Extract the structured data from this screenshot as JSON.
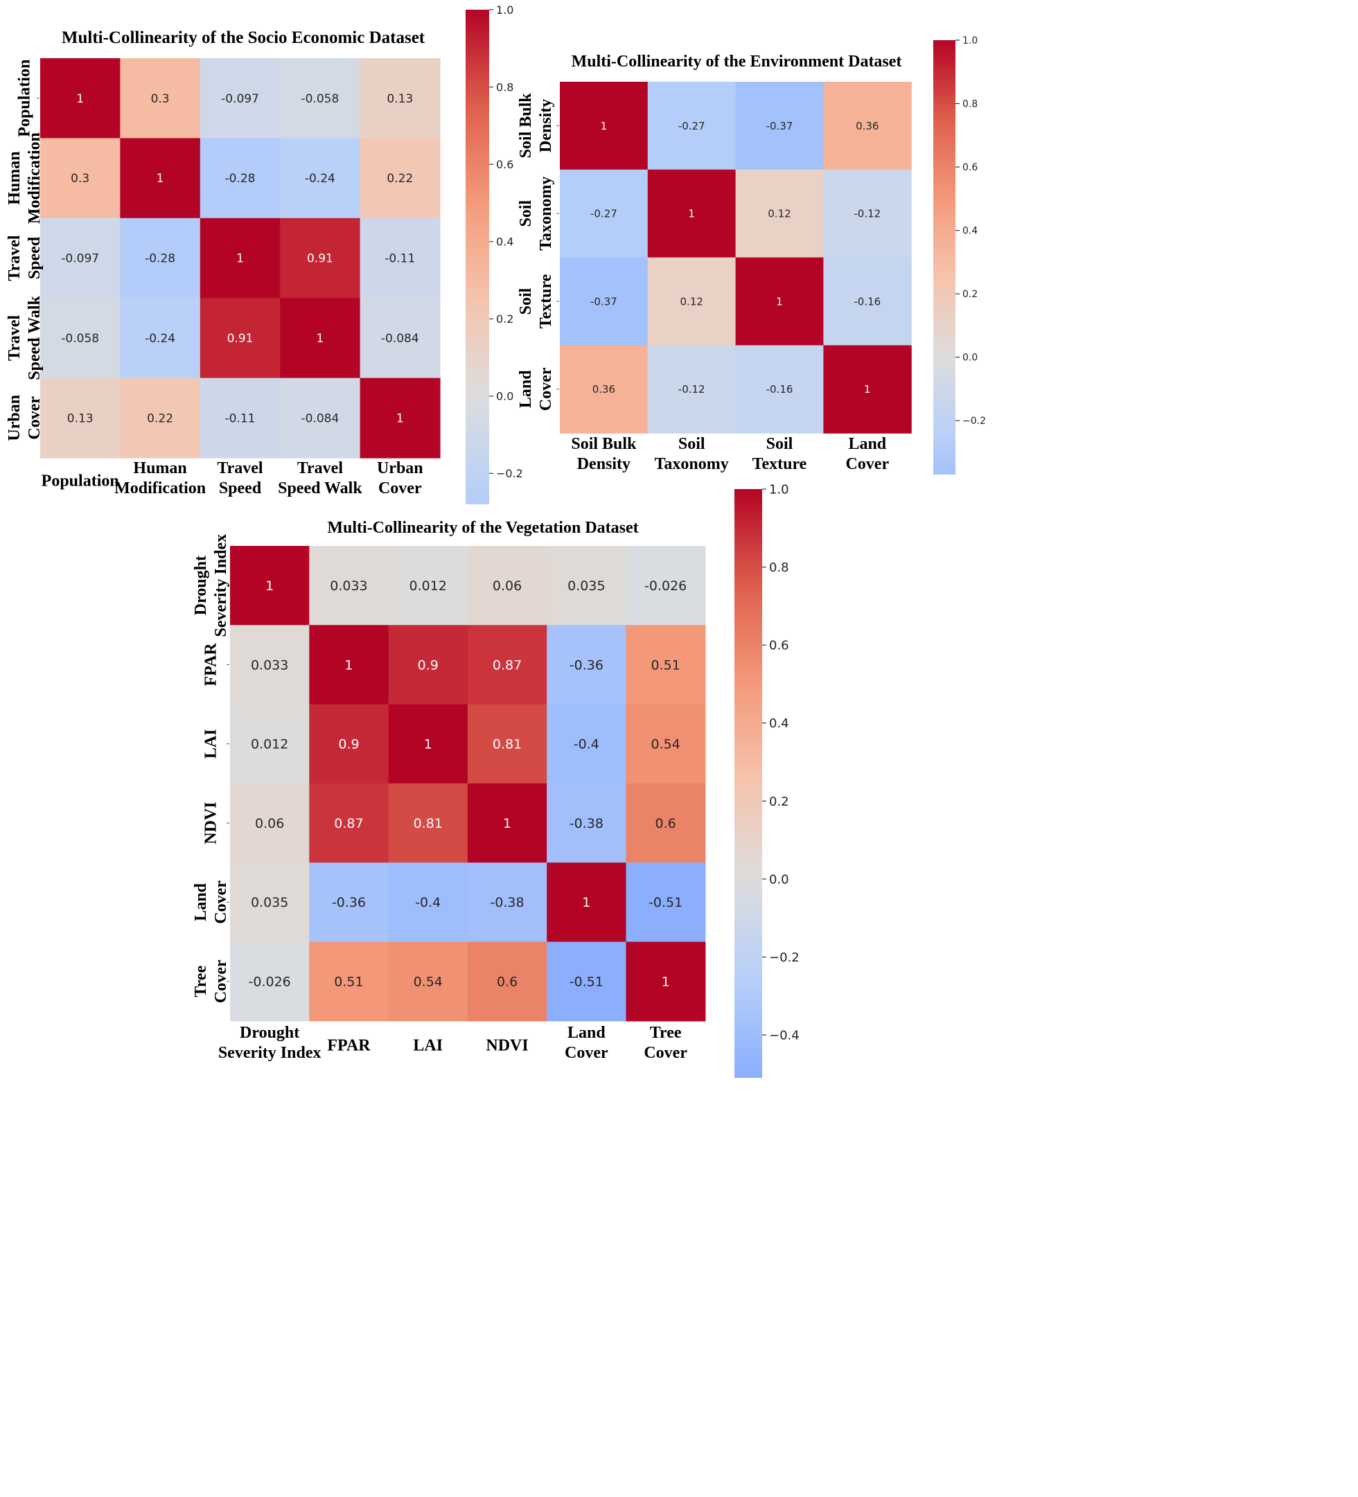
{
  "chart_data": [
    {
      "type": "heatmap",
      "title": "Multi-Collinearity of the Socio Economic Dataset",
      "rows": [
        [
          "Population"
        ],
        [
          "Human",
          "Modification"
        ],
        [
          "Travel",
          "Speed"
        ],
        [
          "Travel",
          "Speed Walk"
        ],
        [
          "Urban",
          "Cover"
        ]
      ],
      "cols": [
        [
          "Population"
        ],
        [
          "Human",
          "Modification"
        ],
        [
          "Travel",
          "Speed"
        ],
        [
          "Travel",
          "Speed Walk"
        ],
        [
          "Urban",
          "Cover"
        ]
      ],
      "values": [
        [
          1,
          0.3,
          -0.097,
          -0.058,
          0.13
        ],
        [
          0.3,
          1,
          -0.28,
          -0.24,
          0.22
        ],
        [
          -0.097,
          -0.28,
          1,
          0.91,
          -0.11
        ],
        [
          -0.058,
          -0.24,
          0.91,
          1,
          -0.084
        ],
        [
          0.13,
          0.22,
          -0.11,
          -0.084,
          1
        ]
      ],
      "value_labels": [
        [
          "1",
          "0.3",
          "-0.097",
          "-0.058",
          "0.13"
        ],
        [
          "0.3",
          "1",
          "-0.28",
          "-0.24",
          "0.22"
        ],
        [
          "-0.097",
          "-0.28",
          "1",
          "0.91",
          "-0.11"
        ],
        [
          "-0.058",
          "-0.24",
          "0.91",
          "1",
          "-0.084"
        ],
        [
          "0.13",
          "0.22",
          "-0.11",
          "-0.084",
          "1"
        ]
      ],
      "colorbar": {
        "min": -0.28,
        "max": 1.0,
        "ticks": [
          "1.0",
          "0.8",
          "0.6",
          "0.4",
          "0.2",
          "0.0",
          "−0.2"
        ],
        "tick_values": [
          1.0,
          0.8,
          0.6,
          0.4,
          0.2,
          0.0,
          -0.2
        ]
      },
      "colormap": "coolwarm"
    },
    {
      "type": "heatmap",
      "title": "Multi-Collinearity of the Environment Dataset",
      "rows": [
        [
          "Soil Bulk",
          "Density"
        ],
        [
          "Soil",
          "Taxonomy"
        ],
        [
          "Soil",
          "Texture"
        ],
        [
          "Land",
          "Cover"
        ]
      ],
      "cols": [
        [
          "Soil Bulk",
          "Density"
        ],
        [
          "Soil",
          "Taxonomy"
        ],
        [
          "Soil",
          "Texture"
        ],
        [
          "Land",
          "Cover"
        ]
      ],
      "values": [
        [
          1,
          -0.27,
          -0.37,
          0.36
        ],
        [
          -0.27,
          1,
          0.12,
          -0.12
        ],
        [
          -0.37,
          0.12,
          1,
          -0.16
        ],
        [
          0.36,
          -0.12,
          -0.16,
          1
        ]
      ],
      "value_labels": [
        [
          "1",
          "-0.27",
          "-0.37",
          "0.36"
        ],
        [
          "-0.27",
          "1",
          "0.12",
          "-0.12"
        ],
        [
          "-0.37",
          "0.12",
          "1",
          "-0.16"
        ],
        [
          "0.36",
          "-0.12",
          "-0.16",
          "1"
        ]
      ],
      "colorbar": {
        "min": -0.37,
        "max": 1.0,
        "ticks": [
          "1.0",
          "0.8",
          "0.6",
          "0.4",
          "0.2",
          "0.0",
          "−0.2"
        ],
        "tick_values": [
          1.0,
          0.8,
          0.6,
          0.4,
          0.2,
          0.0,
          -0.2
        ]
      },
      "colormap": "coolwarm"
    },
    {
      "type": "heatmap",
      "title": "Multi-Collinearity of the Vegetation Dataset",
      "rows": [
        [
          "Drought",
          "Severity Index"
        ],
        [
          "FPAR"
        ],
        [
          "LAI"
        ],
        [
          "NDVI"
        ],
        [
          "Land",
          "Cover"
        ],
        [
          "Tree",
          "Cover"
        ]
      ],
      "cols": [
        [
          "Drought",
          "Severity Index"
        ],
        [
          "FPAR"
        ],
        [
          "LAI"
        ],
        [
          "NDVI"
        ],
        [
          "Land",
          "Cover"
        ],
        [
          "Tree",
          "Cover"
        ]
      ],
      "values": [
        [
          1,
          0.033,
          0.012,
          0.06,
          0.035,
          -0.026
        ],
        [
          0.033,
          1,
          0.9,
          0.87,
          -0.36,
          0.51
        ],
        [
          0.012,
          0.9,
          1,
          0.81,
          -0.4,
          0.54
        ],
        [
          0.06,
          0.87,
          0.81,
          1,
          -0.38,
          0.6
        ],
        [
          0.035,
          -0.36,
          -0.4,
          -0.38,
          1,
          -0.51
        ],
        [
          -0.026,
          0.51,
          0.54,
          0.6,
          -0.51,
          1
        ]
      ],
      "value_labels": [
        [
          "1",
          "0.033",
          "0.012",
          "0.06",
          "0.035",
          "-0.026"
        ],
        [
          "0.033",
          "1",
          "0.9",
          "0.87",
          "-0.36",
          "0.51"
        ],
        [
          "0.012",
          "0.9",
          "1",
          "0.81",
          "-0.4",
          "0.54"
        ],
        [
          "0.06",
          "0.87",
          "0.81",
          "1",
          "-0.38",
          "0.6"
        ],
        [
          "0.035",
          "-0.36",
          "-0.4",
          "-0.38",
          "1",
          "-0.51"
        ],
        [
          "-0.026",
          "0.51",
          "0.54",
          "0.6",
          "-0.51",
          "1"
        ]
      ],
      "colorbar": {
        "min": -0.51,
        "max": 1.0,
        "ticks": [
          "1.0",
          "0.8",
          "0.6",
          "0.4",
          "0.2",
          "0.0",
          "−0.2",
          "−0.4"
        ],
        "tick_values": [
          1.0,
          0.8,
          0.6,
          0.4,
          0.2,
          0.0,
          -0.2,
          -0.4
        ]
      },
      "colormap": "coolwarm"
    }
  ]
}
